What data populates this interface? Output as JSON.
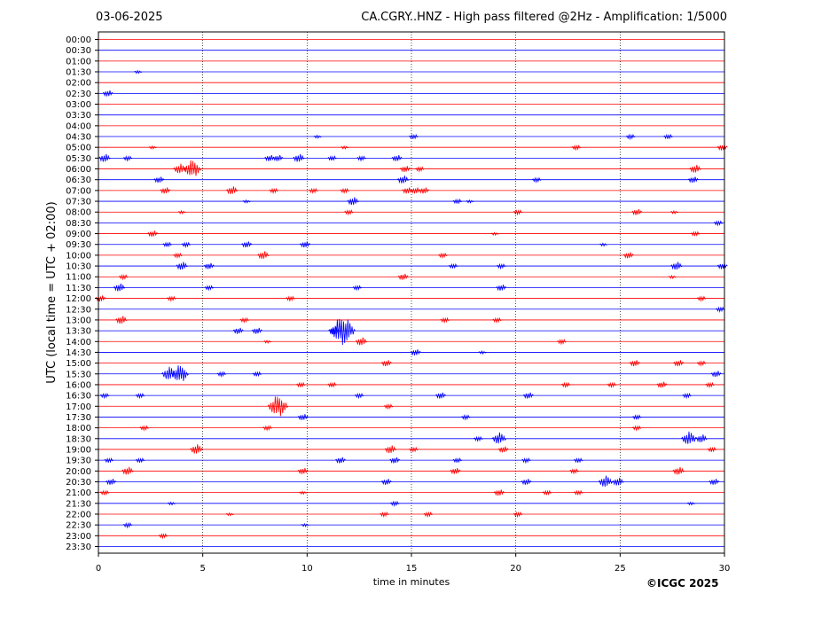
{
  "header": {
    "date": "03-06-2025",
    "title": "CA.CGRY..HNZ - High pass filtered @2Hz - Amplification: 1/5000"
  },
  "credit": "©ICGC 2025",
  "chart_data": {
    "type": "line",
    "title": "CA.CGRY..HNZ - High pass filtered @2Hz - Amplification: 1/5000",
    "xlabel": "time in minutes",
    "ylabel": "UTC (local time = UTC + 02:00)",
    "xlim": [
      0,
      30
    ],
    "x_ticks": [
      0,
      5,
      10,
      15,
      20,
      25,
      30
    ],
    "x_tick_labels": [
      "0",
      "5",
      "10",
      "15",
      "20",
      "25",
      "30"
    ],
    "vertical_grid_at": [
      5,
      10,
      15,
      20,
      25
    ],
    "grid": true,
    "colors": {
      "even_row": "#ff0000",
      "odd_row": "#0000ff"
    },
    "row_labels": [
      "00:00",
      "00:30",
      "01:00",
      "01:30",
      "02:00",
      "02:30",
      "03:00",
      "03:30",
      "04:00",
      "04:30",
      "05:00",
      "05:30",
      "06:00",
      "06:30",
      "07:00",
      "07:30",
      "08:00",
      "08:30",
      "09:00",
      "09:30",
      "10:00",
      "10:30",
      "11:00",
      "11:30",
      "12:00",
      "12:30",
      "13:00",
      "13:30",
      "14:00",
      "14:30",
      "15:00",
      "15:30",
      "16:00",
      "16:30",
      "17:00",
      "17:30",
      "18:00",
      "18:30",
      "19:00",
      "19:30",
      "20:00",
      "20:30",
      "21:00",
      "21:30",
      "22:00",
      "22:30",
      "23:00",
      "23:30"
    ],
    "events": [
      {
        "row": 3,
        "t": 1.9,
        "a": 2
      },
      {
        "row": 5,
        "t": 0.45,
        "a": 4
      },
      {
        "row": 9,
        "t": 10.5,
        "a": 2
      },
      {
        "row": 9,
        "t": 15.1,
        "a": 3
      },
      {
        "row": 9,
        "t": 25.5,
        "a": 3
      },
      {
        "row": 9,
        "t": 27.3,
        "a": 3
      },
      {
        "row": 10,
        "t": 2.6,
        "a": 2
      },
      {
        "row": 10,
        "t": 11.8,
        "a": 2
      },
      {
        "row": 10,
        "t": 22.9,
        "a": 3
      },
      {
        "row": 10,
        "t": 29.9,
        "a": 4
      },
      {
        "row": 11,
        "t": 0.3,
        "a": 5
      },
      {
        "row": 11,
        "t": 1.4,
        "a": 3
      },
      {
        "row": 11,
        "t": 8.2,
        "a": 4
      },
      {
        "row": 11,
        "t": 8.6,
        "a": 4
      },
      {
        "row": 11,
        "t": 9.6,
        "a": 5
      },
      {
        "row": 11,
        "t": 11.2,
        "a": 3
      },
      {
        "row": 11,
        "t": 12.6,
        "a": 3
      },
      {
        "row": 11,
        "t": 14.3,
        "a": 4
      },
      {
        "row": 12,
        "t": 3.9,
        "a": 6
      },
      {
        "row": 12,
        "t": 4.5,
        "a": 10
      },
      {
        "row": 12,
        "t": 14.7,
        "a": 4
      },
      {
        "row": 12,
        "t": 15.4,
        "a": 3
      },
      {
        "row": 12,
        "t": 28.6,
        "a": 5
      },
      {
        "row": 13,
        "t": 2.9,
        "a": 4
      },
      {
        "row": 13,
        "t": 14.6,
        "a": 5
      },
      {
        "row": 13,
        "t": 21.0,
        "a": 3
      },
      {
        "row": 13,
        "t": 28.5,
        "a": 4
      },
      {
        "row": 14,
        "t": 3.2,
        "a": 4
      },
      {
        "row": 14,
        "t": 6.4,
        "a": 5
      },
      {
        "row": 14,
        "t": 8.4,
        "a": 3
      },
      {
        "row": 14,
        "t": 10.3,
        "a": 3
      },
      {
        "row": 14,
        "t": 11.8,
        "a": 3
      },
      {
        "row": 14,
        "t": 14.8,
        "a": 4
      },
      {
        "row": 14,
        "t": 15.2,
        "a": 4
      },
      {
        "row": 14,
        "t": 15.6,
        "a": 4
      },
      {
        "row": 15,
        "t": 7.1,
        "a": 2
      },
      {
        "row": 15,
        "t": 12.2,
        "a": 5
      },
      {
        "row": 15,
        "t": 17.2,
        "a": 3
      },
      {
        "row": 15,
        "t": 17.8,
        "a": 2
      },
      {
        "row": 16,
        "t": 4.0,
        "a": 2
      },
      {
        "row": 16,
        "t": 12.0,
        "a": 3
      },
      {
        "row": 16,
        "t": 20.1,
        "a": 3
      },
      {
        "row": 16,
        "t": 25.8,
        "a": 4
      },
      {
        "row": 16,
        "t": 27.6,
        "a": 2
      },
      {
        "row": 17,
        "t": 29.7,
        "a": 3
      },
      {
        "row": 18,
        "t": 2.6,
        "a": 4
      },
      {
        "row": 18,
        "t": 19.0,
        "a": 2
      },
      {
        "row": 18,
        "t": 28.6,
        "a": 3
      },
      {
        "row": 19,
        "t": 3.3,
        "a": 3
      },
      {
        "row": 19,
        "t": 4.2,
        "a": 3
      },
      {
        "row": 19,
        "t": 7.1,
        "a": 4
      },
      {
        "row": 19,
        "t": 9.9,
        "a": 4
      },
      {
        "row": 19,
        "t": 24.2,
        "a": 2
      },
      {
        "row": 20,
        "t": 3.8,
        "a": 3
      },
      {
        "row": 20,
        "t": 7.9,
        "a": 5
      },
      {
        "row": 20,
        "t": 16.5,
        "a": 3
      },
      {
        "row": 20,
        "t": 25.4,
        "a": 4
      },
      {
        "row": 21,
        "t": 4.0,
        "a": 5
      },
      {
        "row": 21,
        "t": 5.3,
        "a": 4
      },
      {
        "row": 21,
        "t": 17.0,
        "a": 3
      },
      {
        "row": 21,
        "t": 19.3,
        "a": 3
      },
      {
        "row": 21,
        "t": 27.7,
        "a": 5
      },
      {
        "row": 21,
        "t": 29.9,
        "a": 4
      },
      {
        "row": 22,
        "t": 1.2,
        "a": 3
      },
      {
        "row": 22,
        "t": 14.6,
        "a": 4
      },
      {
        "row": 22,
        "t": 27.5,
        "a": 2
      },
      {
        "row": 23,
        "t": 1.0,
        "a": 5
      },
      {
        "row": 23,
        "t": 5.3,
        "a": 3
      },
      {
        "row": 23,
        "t": 12.4,
        "a": 3
      },
      {
        "row": 23,
        "t": 19.3,
        "a": 4
      },
      {
        "row": 24,
        "t": 0.1,
        "a": 4
      },
      {
        "row": 24,
        "t": 3.5,
        "a": 3
      },
      {
        "row": 24,
        "t": 9.2,
        "a": 3
      },
      {
        "row": 24,
        "t": 28.9,
        "a": 3
      },
      {
        "row": 25,
        "t": 29.8,
        "a": 3
      },
      {
        "row": 26,
        "t": 1.1,
        "a": 5
      },
      {
        "row": 26,
        "t": 7.0,
        "a": 3
      },
      {
        "row": 26,
        "t": 16.6,
        "a": 3
      },
      {
        "row": 26,
        "t": 19.1,
        "a": 3
      },
      {
        "row": 27,
        "t": 6.7,
        "a": 4
      },
      {
        "row": 27,
        "t": 7.6,
        "a": 4
      },
      {
        "row": 27,
        "t": 11.3,
        "a": 5
      },
      {
        "row": 27,
        "t": 11.7,
        "a": 16
      },
      {
        "row": 28,
        "t": 8.1,
        "a": 2
      },
      {
        "row": 28,
        "t": 12.6,
        "a": 5
      },
      {
        "row": 28,
        "t": 22.2,
        "a": 3
      },
      {
        "row": 29,
        "t": 15.2,
        "a": 4
      },
      {
        "row": 29,
        "t": 18.4,
        "a": 2
      },
      {
        "row": 30,
        "t": 13.8,
        "a": 4
      },
      {
        "row": 30,
        "t": 25.7,
        "a": 4
      },
      {
        "row": 30,
        "t": 27.8,
        "a": 4
      },
      {
        "row": 30,
        "t": 28.9,
        "a": 3
      },
      {
        "row": 31,
        "t": 3.4,
        "a": 8
      },
      {
        "row": 31,
        "t": 3.9,
        "a": 10
      },
      {
        "row": 31,
        "t": 5.9,
        "a": 3
      },
      {
        "row": 31,
        "t": 7.6,
        "a": 3
      },
      {
        "row": 31,
        "t": 29.6,
        "a": 4
      },
      {
        "row": 32,
        "t": 9.7,
        "a": 3
      },
      {
        "row": 32,
        "t": 11.2,
        "a": 3
      },
      {
        "row": 32,
        "t": 22.4,
        "a": 3
      },
      {
        "row": 32,
        "t": 24.6,
        "a": 3
      },
      {
        "row": 32,
        "t": 27.0,
        "a": 4
      },
      {
        "row": 32,
        "t": 29.3,
        "a": 3
      },
      {
        "row": 33,
        "t": 0.3,
        "a": 3
      },
      {
        "row": 33,
        "t": 2.0,
        "a": 3
      },
      {
        "row": 33,
        "t": 12.5,
        "a": 3
      },
      {
        "row": 33,
        "t": 16.4,
        "a": 4
      },
      {
        "row": 33,
        "t": 20.6,
        "a": 4
      },
      {
        "row": 33,
        "t": 28.2,
        "a": 3
      },
      {
        "row": 34,
        "t": 8.6,
        "a": 12
      },
      {
        "row": 34,
        "t": 13.9,
        "a": 3
      },
      {
        "row": 35,
        "t": 9.8,
        "a": 4
      },
      {
        "row": 35,
        "t": 17.6,
        "a": 3
      },
      {
        "row": 35,
        "t": 25.8,
        "a": 3
      },
      {
        "row": 36,
        "t": 2.2,
        "a": 3
      },
      {
        "row": 36,
        "t": 8.1,
        "a": 3
      },
      {
        "row": 36,
        "t": 25.8,
        "a": 3
      },
      {
        "row": 37,
        "t": 18.2,
        "a": 3
      },
      {
        "row": 37,
        "t": 19.2,
        "a": 7
      },
      {
        "row": 37,
        "t": 28.3,
        "a": 8
      },
      {
        "row": 37,
        "t": 28.9,
        "a": 5
      },
      {
        "row": 38,
        "t": 4.7,
        "a": 6
      },
      {
        "row": 38,
        "t": 14.0,
        "a": 5
      },
      {
        "row": 38,
        "t": 15.1,
        "a": 3
      },
      {
        "row": 38,
        "t": 19.4,
        "a": 4
      },
      {
        "row": 38,
        "t": 29.4,
        "a": 3
      },
      {
        "row": 39,
        "t": 0.5,
        "a": 3
      },
      {
        "row": 39,
        "t": 2.0,
        "a": 3
      },
      {
        "row": 39,
        "t": 11.6,
        "a": 4
      },
      {
        "row": 39,
        "t": 14.2,
        "a": 4
      },
      {
        "row": 39,
        "t": 17.2,
        "a": 3
      },
      {
        "row": 39,
        "t": 20.5,
        "a": 3
      },
      {
        "row": 39,
        "t": 23.0,
        "a": 3
      },
      {
        "row": 40,
        "t": 1.4,
        "a": 5
      },
      {
        "row": 40,
        "t": 9.8,
        "a": 4
      },
      {
        "row": 40,
        "t": 17.1,
        "a": 4
      },
      {
        "row": 40,
        "t": 22.8,
        "a": 3
      },
      {
        "row": 40,
        "t": 27.8,
        "a": 5
      },
      {
        "row": 41,
        "t": 0.6,
        "a": 4
      },
      {
        "row": 41,
        "t": 13.8,
        "a": 4
      },
      {
        "row": 41,
        "t": 20.5,
        "a": 4
      },
      {
        "row": 41,
        "t": 24.3,
        "a": 7
      },
      {
        "row": 41,
        "t": 24.9,
        "a": 5
      },
      {
        "row": 41,
        "t": 29.5,
        "a": 4
      },
      {
        "row": 42,
        "t": 0.3,
        "a": 3
      },
      {
        "row": 42,
        "t": 9.8,
        "a": 2
      },
      {
        "row": 42,
        "t": 19.2,
        "a": 4
      },
      {
        "row": 42,
        "t": 21.5,
        "a": 3
      },
      {
        "row": 42,
        "t": 23.0,
        "a": 3
      },
      {
        "row": 43,
        "t": 3.5,
        "a": 2
      },
      {
        "row": 43,
        "t": 14.2,
        "a": 3
      },
      {
        "row": 43,
        "t": 28.4,
        "a": 2
      },
      {
        "row": 44,
        "t": 6.3,
        "a": 2
      },
      {
        "row": 44,
        "t": 13.7,
        "a": 3
      },
      {
        "row": 44,
        "t": 15.8,
        "a": 3
      },
      {
        "row": 44,
        "t": 20.1,
        "a": 3
      },
      {
        "row": 45,
        "t": 1.4,
        "a": 3
      },
      {
        "row": 45,
        "t": 9.9,
        "a": 2
      },
      {
        "row": 46,
        "t": 3.1,
        "a": 3
      }
    ]
  }
}
